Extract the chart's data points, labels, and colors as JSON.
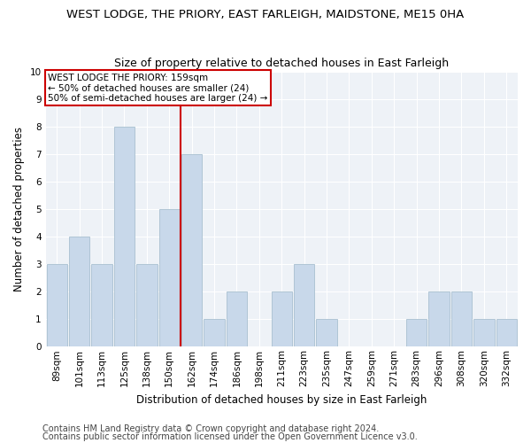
{
  "title": "WEST LODGE, THE PRIORY, EAST FARLEIGH, MAIDSTONE, ME15 0HA",
  "subtitle": "Size of property relative to detached houses in East Farleigh",
  "xlabel": "Distribution of detached houses by size in East Farleigh",
  "ylabel": "Number of detached properties",
  "footnote1": "Contains HM Land Registry data © Crown copyright and database right 2024.",
  "footnote2": "Contains public sector information licensed under the Open Government Licence v3.0.",
  "categories": [
    "89sqm",
    "101sqm",
    "113sqm",
    "125sqm",
    "138sqm",
    "150sqm",
    "162sqm",
    "174sqm",
    "186sqm",
    "198sqm",
    "211sqm",
    "223sqm",
    "235sqm",
    "247sqm",
    "259sqm",
    "271sqm",
    "283sqm",
    "296sqm",
    "308sqm",
    "320sqm",
    "332sqm"
  ],
  "values": [
    3,
    4,
    3,
    8,
    3,
    5,
    7,
    1,
    2,
    0,
    2,
    3,
    1,
    0,
    0,
    0,
    1,
    2,
    2,
    1,
    1
  ],
  "bar_color": "#c8d8ea",
  "bar_edge_color": "#a8bfd0",
  "highlight_line_index": 6,
  "highlight_line_color": "#cc0000",
  "annotation_line1": "WEST LODGE THE PRIORY: 159sqm",
  "annotation_line2": "← 50% of detached houses are smaller (24)",
  "annotation_line3": "50% of semi-detached houses are larger (24) →",
  "annotation_box_color": "#cc0000",
  "ylim": [
    0,
    10
  ],
  "yticks": [
    0,
    1,
    2,
    3,
    4,
    5,
    6,
    7,
    8,
    9,
    10
  ],
  "title_fontsize": 9.5,
  "subtitle_fontsize": 9,
  "axis_label_fontsize": 8.5,
  "tick_fontsize": 7.5,
  "annotation_fontsize": 7.5,
  "footnote_fontsize": 7,
  "plot_bg_color": "#eef2f7"
}
